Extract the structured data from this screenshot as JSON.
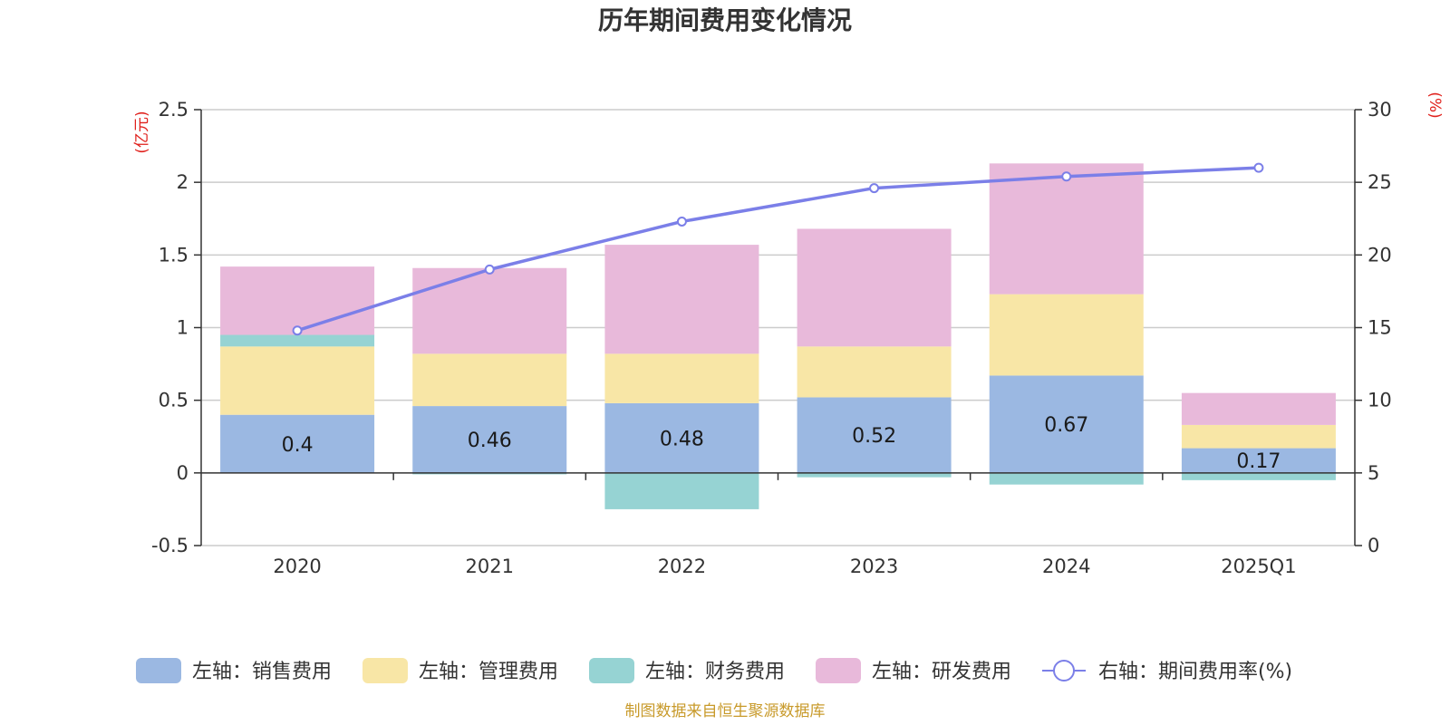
{
  "chart_data": {
    "type": "bar",
    "title": "历年期间费用变化情况",
    "categories": [
      "2020",
      "2021",
      "2022",
      "2023",
      "2024",
      "2025Q1"
    ],
    "left_axis": {
      "unit": "(亿元)",
      "ylim": [
        -0.5,
        2.5
      ],
      "ticks": [
        "2.5",
        "2",
        "1.5",
        "1",
        "0.5",
        "0",
        "-0.5"
      ]
    },
    "right_axis": {
      "unit": "(%)",
      "ylim": [
        0,
        30
      ],
      "ticks": [
        "30",
        "25",
        "20",
        "15",
        "10",
        "5",
        "0"
      ]
    },
    "grid": true,
    "legend_position": "bottom",
    "series": [
      {
        "name": "左轴：销售费用",
        "axis": "left",
        "color": "#9bb8e2",
        "values": [
          0.4,
          0.46,
          0.48,
          0.52,
          0.67,
          0.17
        ],
        "labels": [
          "0.4",
          "0.46",
          "0.48",
          "0.52",
          "0.67",
          "0.17"
        ]
      },
      {
        "name": "左轴：管理费用",
        "axis": "left",
        "color": "#f8e6a6",
        "values": [
          0.47,
          0.36,
          0.34,
          0.35,
          0.56,
          0.16
        ]
      },
      {
        "name": "左轴：财务费用",
        "axis": "left",
        "color": "#96d3d3",
        "values": [
          0.08,
          -0.01,
          -0.25,
          -0.03,
          -0.08,
          -0.05
        ]
      },
      {
        "name": "左轴：研发费用",
        "axis": "left",
        "color": "#e8b9da",
        "values": [
          0.47,
          0.59,
          0.75,
          0.81,
          0.9,
          0.22
        ]
      },
      {
        "name": "右轴：期间费用率(%)",
        "axis": "right",
        "type": "line",
        "color": "#7b7fe8",
        "values": [
          14.8,
          19.0,
          22.3,
          24.6,
          25.4,
          26.0
        ]
      }
    ]
  },
  "source": "制图数据来自恒生聚源数据库"
}
